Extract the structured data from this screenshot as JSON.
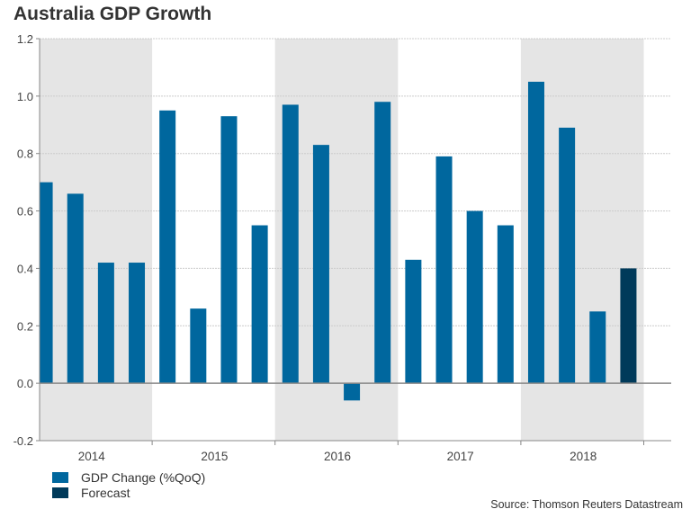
{
  "chart_data": {
    "type": "bar",
    "title": "Australia GDP Growth",
    "xlabel": "",
    "ylabel": "",
    "ylim": [
      -0.2,
      1.2
    ],
    "yticks": [
      "1.2",
      "1.0",
      "0.8",
      "0.6",
      "0.4",
      "0.2",
      "0.0",
      "-0.2"
    ],
    "ytick_values": [
      1.2,
      1.0,
      0.8,
      0.6,
      0.4,
      0.2,
      0.0,
      -0.2
    ],
    "grid": true,
    "year_groups": [
      "2014",
      "2015",
      "2016",
      "2017",
      "2018"
    ],
    "shaded_years": [
      "2014",
      "2016",
      "2018"
    ],
    "categories": [
      "2014 Q1",
      "2014 Q2",
      "2014 Q3",
      "2014 Q4",
      "2015 Q1",
      "2015 Q2",
      "2015 Q3",
      "2015 Q4",
      "2016 Q1",
      "2016 Q2",
      "2016 Q3",
      "2016 Q4",
      "2017 Q1",
      "2017 Q2",
      "2017 Q3",
      "2017 Q4",
      "2018 Q1",
      "2018 Q2",
      "2018 Q3",
      "2018 Q4"
    ],
    "series": [
      {
        "name": "GDP Change (%QoQ)",
        "color": "#00679E",
        "values": [
          0.7,
          0.66,
          0.42,
          0.42,
          0.95,
          0.26,
          0.93,
          0.55,
          0.97,
          0.83,
          -0.06,
          0.98,
          0.43,
          0.79,
          0.6,
          0.55,
          1.05,
          0.89,
          0.25,
          null
        ]
      },
      {
        "name": "Forecast",
        "color": "#003A5A",
        "values": [
          null,
          null,
          null,
          null,
          null,
          null,
          null,
          null,
          null,
          null,
          null,
          null,
          null,
          null,
          null,
          null,
          null,
          null,
          null,
          0.4
        ]
      }
    ],
    "legend": [
      "GDP Change (%QoQ)",
      "Forecast"
    ],
    "legend_position": "bottom-left",
    "source": "Source: Thomson Reuters Datastream"
  },
  "colors": {
    "bar": "#00679E",
    "forecast": "#003A5A",
    "shade": "#E5E5E5",
    "grid": "#CCCCCC",
    "axis": "#888888"
  }
}
